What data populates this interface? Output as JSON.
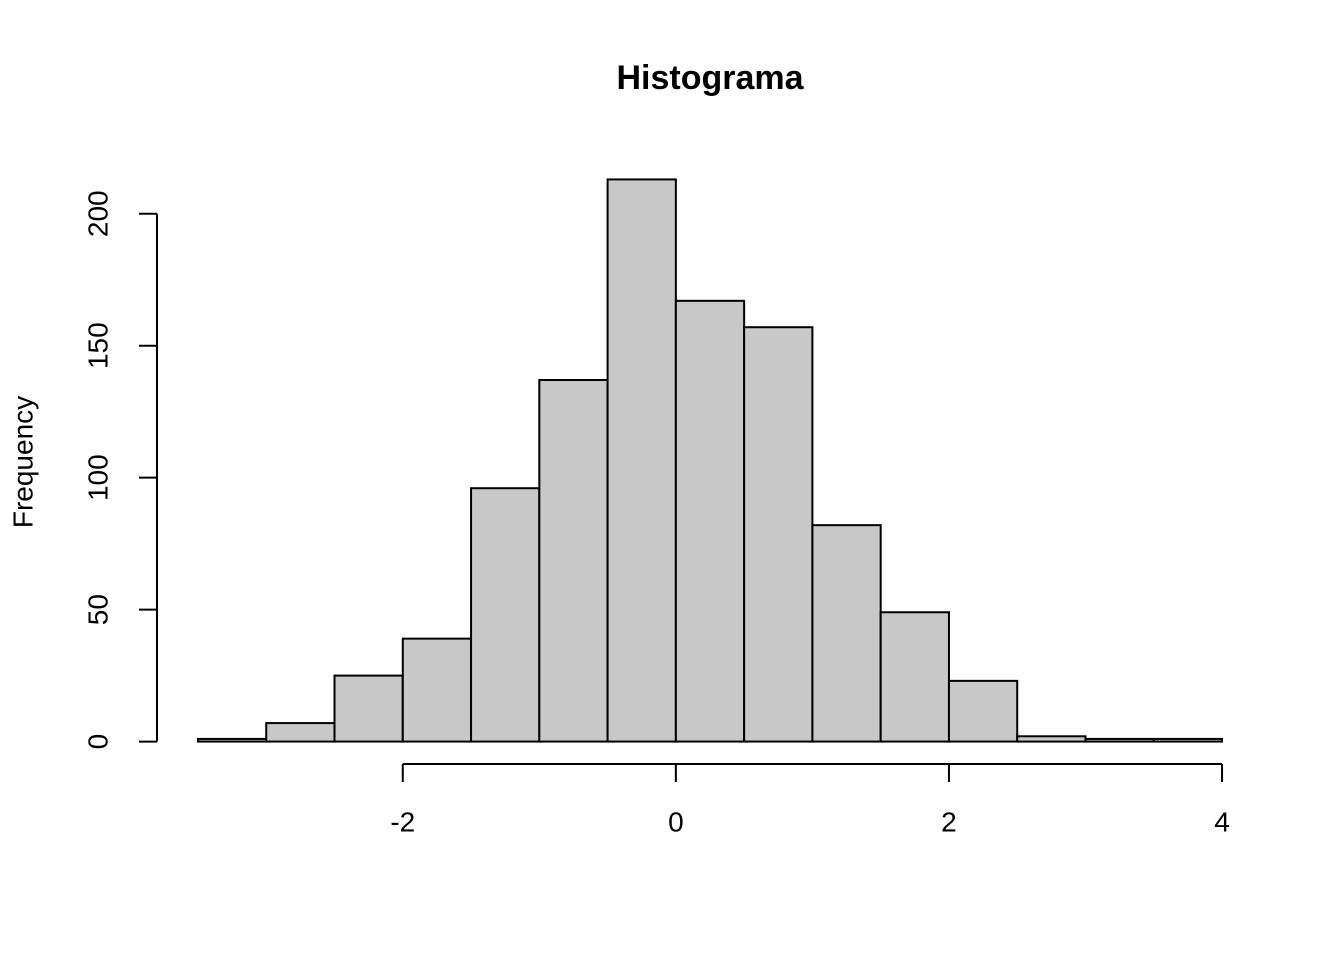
{
  "chart_data": {
    "type": "histogram",
    "title": "Histograma",
    "y_label": "Frequency",
    "bins": [
      -3.5,
      -3,
      -2.5,
      -2,
      -1.5,
      -1,
      -0.5,
      0,
      0.5,
      1,
      1.5,
      2,
      2.5,
      3,
      3.5,
      4
    ],
    "values": [
      1,
      7,
      25,
      39,
      96,
      137,
      213,
      167,
      157,
      82,
      49,
      23,
      2,
      1,
      1
    ],
    "color": "#c8c8c8",
    "xlim": [
      -3.8,
      4.3
    ],
    "ylim": [
      -8.5,
      221.5
    ],
    "xticks": [
      -2,
      0,
      2,
      4
    ],
    "yticks": [
      0,
      50,
      100,
      150,
      200
    ]
  }
}
